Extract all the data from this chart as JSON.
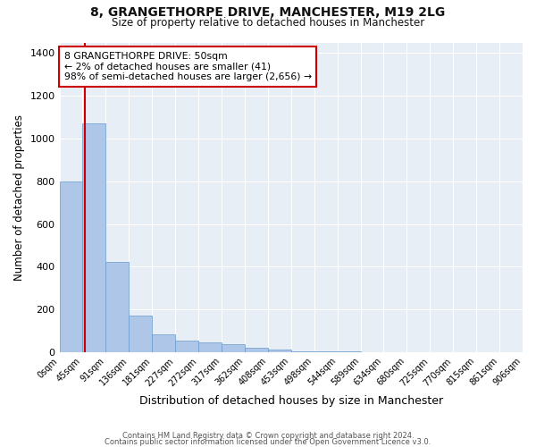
{
  "title": "8, GRANGETHORPE DRIVE, MANCHESTER, M19 2LG",
  "subtitle": "Size of property relative to detached houses in Manchester",
  "xlabel": "Distribution of detached houses by size in Manchester",
  "ylabel": "Number of detached properties",
  "bar_color": "#aec6e8",
  "bar_edge_color": "#6699cc",
  "background_color": "#e8eef5",
  "fig_background_color": "#ffffff",
  "grid_color": "#ffffff",
  "annotation_box_color": "#cc0000",
  "annotation_line1": "8 GRANGETHORPE DRIVE: 50sqm",
  "annotation_line2": "← 2% of detached houses are smaller (41)",
  "annotation_line3": "98% of semi-detached houses are larger (2,656) →",
  "bin_labels": [
    "0sqm",
    "45sqm",
    "91sqm",
    "136sqm",
    "181sqm",
    "227sqm",
    "272sqm",
    "317sqm",
    "362sqm",
    "408sqm",
    "453sqm",
    "498sqm",
    "544sqm",
    "589sqm",
    "634sqm",
    "680sqm",
    "725sqm",
    "770sqm",
    "815sqm",
    "861sqm",
    "906sqm"
  ],
  "bar_heights": [
    800,
    1070,
    420,
    170,
    85,
    55,
    45,
    38,
    20,
    10,
    5,
    3,
    2,
    1,
    1,
    0,
    0,
    0,
    0,
    0
  ],
  "property_vline_x": 1.109,
  "ylim": [
    0,
    1450
  ],
  "yticks": [
    0,
    200,
    400,
    600,
    800,
    1000,
    1200,
    1400
  ],
  "footer1": "Contains HM Land Registry data © Crown copyright and database right 2024.",
  "footer2": "Contains public sector information licensed under the Open Government Licence v3.0."
}
